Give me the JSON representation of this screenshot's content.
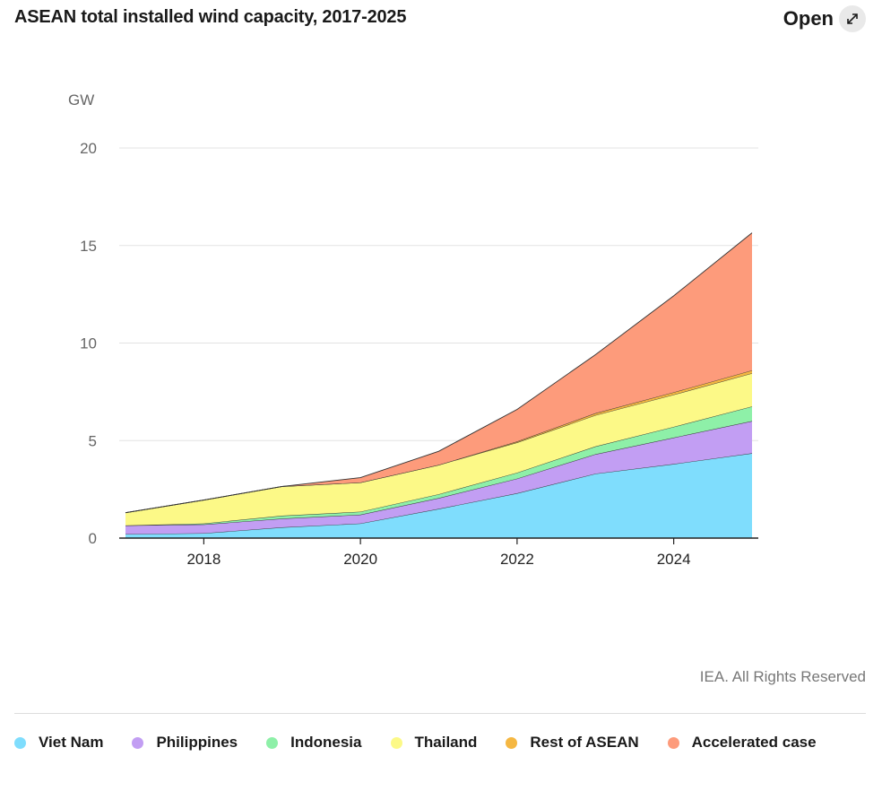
{
  "header": {
    "title": "ASEAN total installed wind capacity, 2017-2025",
    "open_label": "Open",
    "open_icon": "expand-arrows-icon"
  },
  "footer": {
    "credit": "IEA. All Rights Reserved"
  },
  "chart_data": {
    "type": "area",
    "stacked": true,
    "ylabel": "GW",
    "ylim": [
      0,
      20
    ],
    "yticks": [
      0,
      5,
      10,
      15,
      20
    ],
    "xlim": [
      2017,
      2025
    ],
    "xticks": [
      2018,
      2020,
      2022,
      2024
    ],
    "grid": "horizontal",
    "legend_position": "bottom",
    "x": [
      2017,
      2018,
      2019,
      2020,
      2021,
      2022,
      2023,
      2024,
      2025
    ],
    "series": [
      {
        "name": "Viet Nam",
        "color": "#7fddfd",
        "values": [
          0.2,
          0.25,
          0.55,
          0.75,
          1.5,
          2.3,
          3.3,
          3.8,
          4.35
        ]
      },
      {
        "name": "Philippines",
        "color": "#c29ef3",
        "values": [
          0.45,
          0.45,
          0.45,
          0.45,
          0.55,
          0.75,
          1.0,
          1.35,
          1.65
        ]
      },
      {
        "name": "Indonesia",
        "color": "#8ef0a8",
        "values": [
          0.0,
          0.05,
          0.15,
          0.15,
          0.2,
          0.3,
          0.4,
          0.55,
          0.75
        ]
      },
      {
        "name": "Thailand",
        "color": "#fcf987",
        "values": [
          0.65,
          1.2,
          1.5,
          1.5,
          1.5,
          1.55,
          1.6,
          1.65,
          1.7
        ]
      },
      {
        "name": "Rest of ASEAN",
        "color": "#f5b742",
        "values": [
          0.0,
          0.0,
          0.0,
          0.0,
          0.0,
          0.05,
          0.1,
          0.12,
          0.15
        ]
      },
      {
        "name": "Accelerated case",
        "color": "#fd9b7b",
        "values": [
          0.0,
          0.0,
          0.0,
          0.25,
          0.7,
          1.65,
          3.0,
          4.95,
          7.05
        ]
      }
    ]
  }
}
